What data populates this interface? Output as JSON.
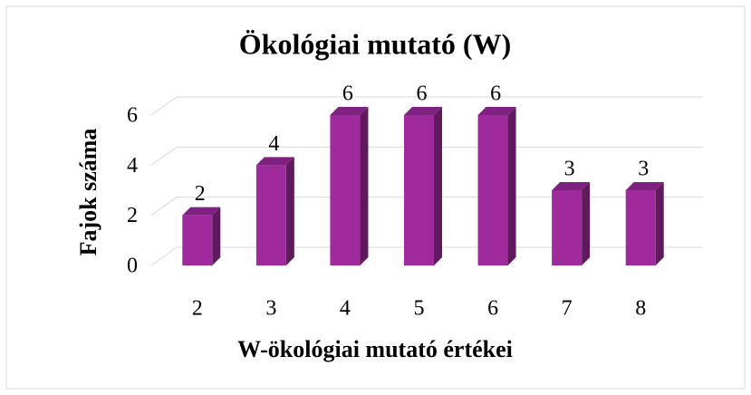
{
  "chart_data": {
    "type": "bar3d",
    "title": "Ökológiai mutató (W)",
    "x_label": "W-ökológiai mutató értékei",
    "y_label": "Fajok száma",
    "categories": [
      "2",
      "3",
      "4",
      "5",
      "6",
      "7",
      "8"
    ],
    "values": [
      2,
      4,
      6,
      6,
      6,
      3,
      3
    ],
    "color": "#9e2a9c",
    "ylim": [
      0,
      6
    ],
    "yticks": [
      0,
      2,
      4,
      6
    ],
    "grid": true
  }
}
